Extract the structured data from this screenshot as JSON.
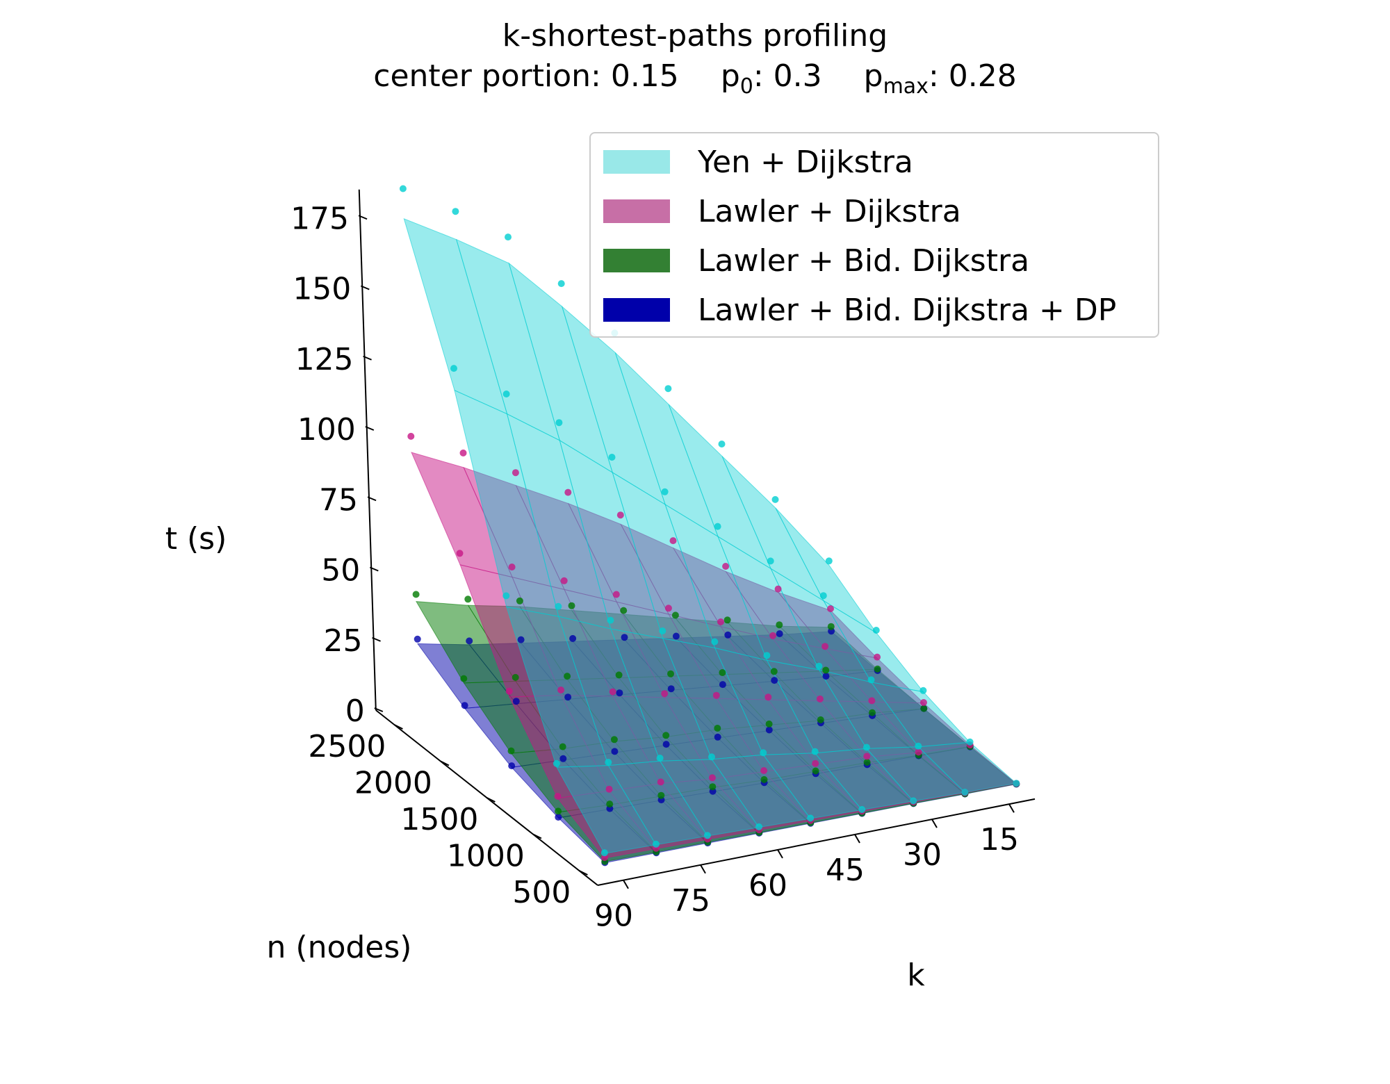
{
  "chart_data": {
    "type": "surface3d",
    "title": "k-shortest-paths profiling",
    "subtitle_parts": {
      "center_label": "center portion: 0.15",
      "p0_base": "p",
      "p0_sub": "0",
      "p0_value": ": 0.3",
      "pmax_base": "p",
      "pmax_sub": "max",
      "pmax_value": ": 0.28"
    },
    "xlabel": "k",
    "ylabel": "n (nodes)",
    "zlabel": "t (s)",
    "x_ticks": [
      15,
      30,
      45,
      60,
      75,
      90
    ],
    "y_ticks": [
      500,
      1000,
      1500,
      2000,
      2500
    ],
    "z_ticks": [
      0,
      25,
      50,
      75,
      100,
      125,
      150,
      175
    ],
    "xlim": [
      10,
      95
    ],
    "ylim": [
      300,
      2700
    ],
    "zlim": [
      0,
      185
    ],
    "k_grid": [
      10,
      20,
      30,
      40,
      50,
      60,
      70,
      80,
      90
    ],
    "n_grid": [
      500,
      1000,
      1500,
      2000,
      2500
    ],
    "legend_position": "upper-right",
    "series": [
      {
        "name": "Yen + Dijkstra",
        "color": "#00ced1",
        "legend_color": "#99e8e8",
        "t": [
          [
            0.4,
            0.8,
            1.3,
            1.8,
            2.3,
            2.8,
            3.3,
            3.8,
            4.3
          ],
          [
            2,
            4,
            7,
            9,
            12,
            14,
            17,
            19,
            22
          ],
          [
            7,
            14,
            22,
            29,
            37,
            44,
            51,
            59,
            66
          ],
          [
            15,
            30,
            45,
            60,
            75,
            90,
            105,
            118,
            130
          ],
          [
            26,
            50,
            72,
            94,
            116,
            136,
            155,
            167,
            178
          ]
        ]
      },
      {
        "name": "Lawler + Dijkstra",
        "color": "#c71585",
        "legend_color": "#c76fa6",
        "t": [
          [
            0.3,
            0.6,
            0.9,
            1.2,
            1.5,
            1.8,
            2.1,
            2.4,
            2.7
          ],
          [
            1,
            2,
            4,
            5,
            6,
            7,
            9,
            10,
            11
          ],
          [
            3,
            7,
            11,
            15,
            19,
            23,
            27,
            31,
            34
          ],
          [
            6,
            13,
            20,
            28,
            36,
            44,
            52,
            60,
            68
          ],
          [
            10,
            20,
            31,
            43,
            55,
            66,
            76,
            86,
            95
          ]
        ]
      },
      {
        "name": "Lawler + Bid. Dijkstra",
        "color": "#007a00",
        "legend_color": "#338033",
        "t": [
          [
            0.2,
            0.3,
            0.5,
            0.6,
            0.8,
            0.9,
            1.1,
            1.2,
            1.4
          ],
          [
            0.5,
            1,
            2,
            2.5,
            3,
            4,
            4.5,
            5,
            6
          ],
          [
            1,
            3,
            4,
            6,
            8,
            9,
            11,
            12,
            14
          ],
          [
            2,
            5,
            8,
            11,
            14,
            17,
            20,
            23,
            26
          ],
          [
            4,
            8,
            13,
            18,
            23,
            28,
            33,
            37,
            42
          ]
        ]
      },
      {
        "name": "Lawler + Bid. Dijkstra + DP",
        "color": "#0000aa",
        "legend_color": "#0000aa",
        "t": [
          [
            0.1,
            0.2,
            0.4,
            0.5,
            0.6,
            0.7,
            0.8,
            0.9,
            1.0
          ],
          [
            0.4,
            0.8,
            1.2,
            1.6,
            2,
            2.5,
            3,
            3.5,
            4
          ],
          [
            1,
            2,
            3,
            4,
            5,
            6,
            7,
            8,
            9
          ],
          [
            1.5,
            3,
            5,
            7,
            9,
            11,
            13,
            15,
            17
          ],
          [
            2.5,
            5,
            8,
            11,
            14,
            17,
            20,
            23,
            27
          ]
        ]
      }
    ]
  }
}
